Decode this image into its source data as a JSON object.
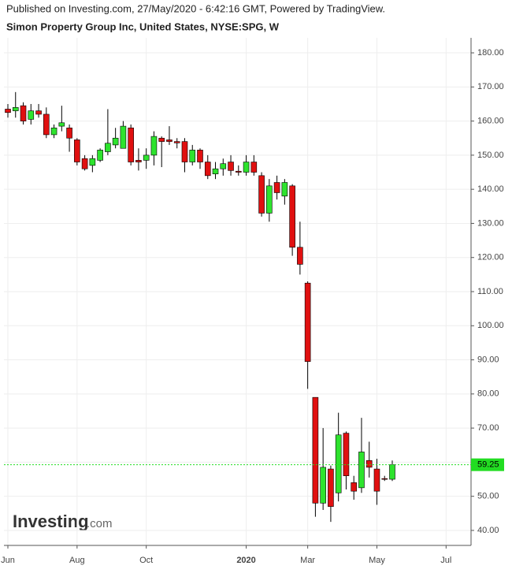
{
  "chart_data": {
    "type": "candlestick",
    "header": "Published on Investing.com, 27/May/2020 - 6:42:16 GMT, Powered by TradingView.",
    "title": "Simon Property Group Inc, United States, NYSE:SPG, W",
    "watermark": "Investing",
    "watermark_suffix": ".com",
    "categories": [
      "Jun",
      null,
      null,
      null,
      null,
      null,
      null,
      null,
      null,
      "Aug",
      null,
      null,
      null,
      null,
      null,
      null,
      null,
      null,
      "Oct",
      null,
      null,
      null,
      null,
      null,
      null,
      null,
      null,
      null,
      null,
      null,
      null,
      "2020",
      null,
      null,
      null,
      null,
      null,
      null,
      null,
      "Mar",
      null,
      null,
      null,
      null,
      null,
      null,
      null,
      null,
      "May",
      null,
      null,
      null,
      null,
      null,
      null,
      null,
      null,
      "Jul",
      null,
      null,
      null
    ],
    "series": [
      {
        "up_color": "#2ee32e",
        "down_color": "#e01010",
        "open": [
          163.5,
          163,
          164.5,
          160.5,
          163,
          162,
          156,
          158.5,
          158,
          154.5,
          149,
          147,
          148.5,
          151,
          153,
          152,
          158,
          148.5,
          148.5,
          150,
          155,
          154.5,
          154,
          154,
          148,
          151.5,
          148,
          144.5,
          146,
          148,
          145.3,
          145,
          148,
          144,
          133,
          142,
          138,
          141,
          123,
          112.5,
          79,
          48,
          58,
          51,
          68.5,
          54,
          52.5,
          60.5,
          58,
          55.2,
          55,
          null,
          null,
          null,
          null,
          null,
          null,
          null,
          null,
          null,
          null
        ],
        "high": [
          165,
          168.5,
          165.5,
          165,
          165,
          164,
          159,
          164.5,
          159,
          155,
          150,
          150,
          152,
          163.5,
          158,
          160,
          159,
          152,
          152,
          157,
          155.5,
          158.5,
          155,
          155,
          153,
          152,
          150,
          148,
          149,
          150,
          147,
          150,
          150,
          145,
          143,
          144,
          143,
          141.5,
          130.5,
          113,
          79,
          70,
          59,
          74.5,
          69,
          56,
          73,
          66,
          61,
          56,
          60.5,
          null,
          null,
          null,
          null,
          null,
          null,
          null,
          null,
          null,
          null
        ],
        "low": [
          161,
          161,
          159,
          159,
          161,
          155,
          155,
          157,
          151,
          147,
          145.5,
          145,
          148,
          150,
          152,
          152,
          147,
          145.5,
          146,
          147,
          146.5,
          153,
          152,
          145,
          147,
          146,
          143,
          143,
          144,
          144,
          144,
          144,
          144,
          132,
          130.5,
          137,
          135.5,
          120.5,
          115,
          81.5,
          44,
          46,
          42.5,
          48.5,
          52,
          49,
          51,
          55.5,
          47.5,
          54.5,
          54.5,
          null,
          null,
          null,
          null,
          null,
          null,
          null,
          null,
          null,
          null
        ],
        "close": [
          162.5,
          164,
          160,
          163,
          162,
          156,
          158,
          159.5,
          155,
          148,
          146,
          149,
          151.5,
          153.5,
          155,
          158.5,
          148,
          148,
          150,
          155.5,
          154,
          154,
          153.6,
          148,
          151.5,
          148,
          144,
          146,
          147.5,
          145.5,
          145,
          148,
          145,
          133,
          141,
          139,
          142,
          123,
          118,
          89.5,
          48,
          58.5,
          47,
          68,
          56,
          51.5,
          63,
          58.5,
          51.5,
          55,
          59.25,
          null,
          null,
          null,
          null,
          null,
          null,
          null,
          null,
          null,
          null
        ]
      }
    ],
    "last_price": 59.25,
    "last_price_color": "#22dd22",
    "ylim": [
      35.6,
      184.4
    ],
    "yticks": [
      {
        "value": 40,
        "label": "40.00"
      },
      {
        "value": 50,
        "label": "50.00"
      },
      {
        "value": 60,
        "label": "60.00"
      },
      {
        "value": 70,
        "label": "70.00"
      },
      {
        "value": 80,
        "label": "80.00"
      },
      {
        "value": 90,
        "label": "90.00"
      },
      {
        "value": 100,
        "label": "100.00"
      },
      {
        "value": 110,
        "label": "110.00"
      },
      {
        "value": 120,
        "label": "120.00"
      },
      {
        "value": 130,
        "label": "130.00"
      },
      {
        "value": 140,
        "label": "140.00"
      },
      {
        "value": 150,
        "label": "150.00"
      },
      {
        "value": 160,
        "label": "160.00"
      },
      {
        "value": 170,
        "label": "170.00"
      },
      {
        "value": 180,
        "label": "180.00"
      }
    ],
    "grid": true
  }
}
